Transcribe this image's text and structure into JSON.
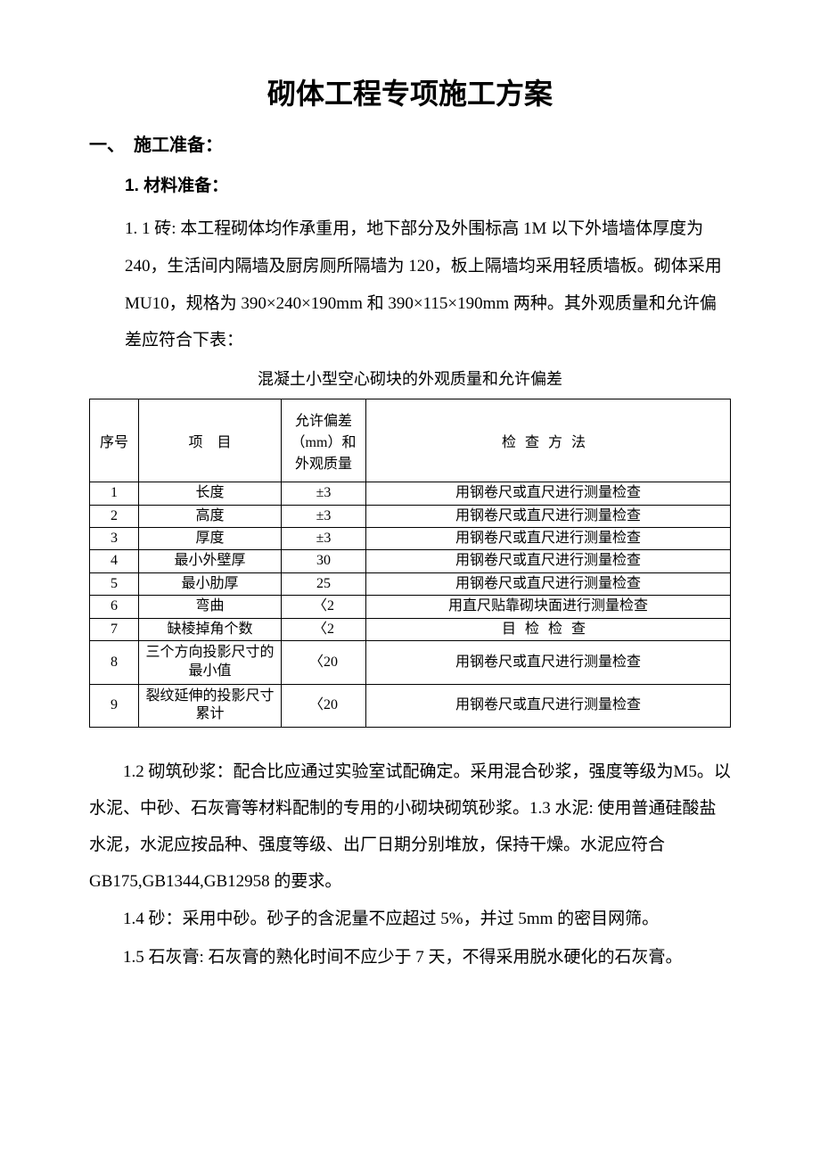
{
  "title": "砌体工程专项施工方案",
  "section1": {
    "heading": "一、　施工准备：",
    "sub1": {
      "heading": "1. 材料准备：",
      "para1_1": "1. 1 砖: 本工程砌体均作承重用，地下部分及外围标高 1M 以下外墙墙体厚度为 240，生活间内隔墙及厨房厕所隔墙为 120，板上隔墙均采用轻质墙板。砌体采用 MU10，规格为 390×240×190mm 和 390×115×190mm 两种。其外观质量和允许偏差应符合下表："
    }
  },
  "table": {
    "caption": "混凝土小型空心砌块的外观质量和允许偏差",
    "headers": {
      "seq": "序号",
      "item": "项目",
      "tolerance": "允许偏差（mm）和外观质量",
      "method": "检查方法"
    },
    "rows": [
      {
        "seq": "1",
        "item": "长度",
        "tol": "±3",
        "method": "用钢卷尺或直尺进行测量检查"
      },
      {
        "seq": "2",
        "item": "高度",
        "tol": "±3",
        "method": "用钢卷尺或直尺进行测量检查"
      },
      {
        "seq": "3",
        "item": "厚度",
        "tol": "±3",
        "method": "用钢卷尺或直尺进行测量检查"
      },
      {
        "seq": "4",
        "item": "最小外壁厚",
        "tol": "30",
        "method": "用钢卷尺或直尺进行测量检查"
      },
      {
        "seq": "5",
        "item": "最小肋厚",
        "tol": "25",
        "method": "用钢卷尺或直尺进行测量检查"
      },
      {
        "seq": "6",
        "item": "弯曲",
        "tol": "〈2",
        "method": "用直尺贴靠砌块面进行测量检查"
      },
      {
        "seq": "7",
        "item": "缺棱掉角个数",
        "tol": "〈2",
        "method": "目检检查"
      },
      {
        "seq": "8",
        "item": "三个方向投影尺寸的最小值",
        "tol": "〈20",
        "method": "用钢卷尺或直尺进行测量检查"
      },
      {
        "seq": "9",
        "item": "裂纹延伸的投影尺寸累计",
        "tol": "〈20",
        "method": "用钢卷尺或直尺进行测量检查"
      }
    ]
  },
  "paragraphs": {
    "p1_2": "1.2 砌筑砂浆：配合比应通过实验室试配确定。采用混合砂浆，强度等级为M5。以水泥、中砂、石灰膏等材料配制的专用的小砌块砌筑砂浆。1.3 水泥: 使用普通硅酸盐水泥，水泥应按品种、强度等级、出厂日期分别堆放，保持干燥。水泥应符合 GB175,GB1344,GB12958 的要求。",
    "p1_4": "1.4 砂：采用中砂。砂子的含泥量不应超过 5%，并过 5mm 的密目网筛。",
    "p1_5": "1.5 石灰膏: 石灰膏的熟化时间不应少于 7 天，不得采用脱水硬化的石灰膏。"
  }
}
